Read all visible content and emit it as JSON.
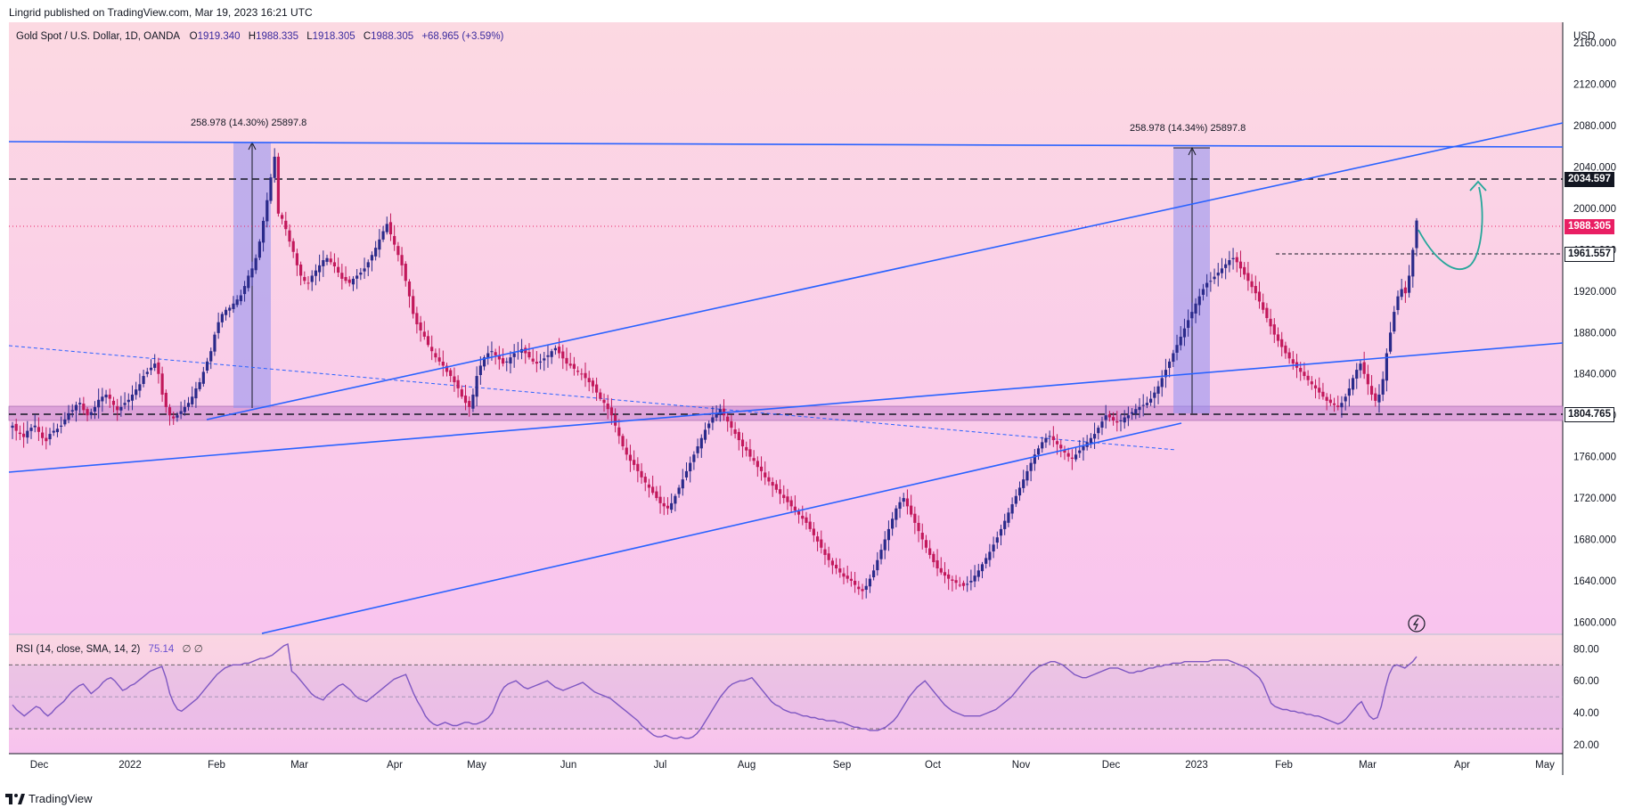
{
  "publisher": "Lingrid published on TradingView.com, Mar 19, 2023 16:21 UTC",
  "header": {
    "symbol": "Gold Spot / U.S. Dollar, 1D, OANDA",
    "o_label": "O",
    "open": "1919.340",
    "h_label": "H",
    "high": "1988.335",
    "l_label": "L",
    "low": "1918.305",
    "c_label": "C",
    "close": "1988.305",
    "change": "+68.965 (+3.59%)"
  },
  "rsi_header": {
    "label": "RSI (14, close, SMA, 14, 2)",
    "value": "75.14",
    "extra": "∅ ∅"
  },
  "footer": {
    "brand": "TradingView"
  },
  "colors": {
    "up": "#2a2a8a",
    "down": "#c2185b",
    "trend": "#2962ff",
    "price_badge": "#e91e63",
    "arrow": "#26a69a",
    "rsi_line": "#7e57c2"
  },
  "chart_data": {
    "type": "candlestick",
    "currency": "USD",
    "y_range": [
      1590,
      2180
    ],
    "y_ticks": [
      "2160.000",
      "2120.000",
      "2080.000",
      "2040.000",
      "2000.000",
      "1960.000",
      "1920.000",
      "1880.000",
      "1840.000",
      "1800.000",
      "1760.000",
      "1720.000",
      "1680.000",
      "1640.000",
      "1600.000"
    ],
    "x_labels": [
      "Dec",
      "2022",
      "Feb",
      "Mar",
      "Apr",
      "May",
      "Jun",
      "Jul",
      "Aug",
      "Sep",
      "Oct",
      "Nov",
      "Dec",
      "2023",
      "Feb",
      "Mar",
      "Apr",
      "May"
    ],
    "price_levels": [
      {
        "value": "2034.597",
        "style": "dashed"
      },
      {
        "value": "1988.305",
        "style": "current"
      },
      {
        "value": "1961.557",
        "style": "dashed"
      },
      {
        "value": "1804.765",
        "style": "dashed"
      }
    ],
    "measurements": [
      {
        "text": "258.978 (14.30%) 25897.8"
      },
      {
        "text": "258.978 (14.34%) 25897.8"
      }
    ],
    "series": {
      "name": "Gold Spot / U.S. Dollar",
      "closes": [
        1790,
        1785,
        1782,
        1779,
        1785,
        1788,
        1790,
        1784,
        1778,
        1775,
        1782,
        1785,
        1787,
        1790,
        1796,
        1802,
        1805,
        1810,
        1812,
        1805,
        1800,
        1803,
        1808,
        1815,
        1818,
        1820,
        1816,
        1810,
        1805,
        1808,
        1812,
        1815,
        1820,
        1825,
        1830,
        1838,
        1842,
        1846,
        1850,
        1840,
        1820,
        1808,
        1800,
        1797,
        1800,
        1804,
        1808,
        1812,
        1818,
        1826,
        1832,
        1842,
        1852,
        1862,
        1878,
        1890,
        1898,
        1902,
        1904,
        1908,
        1912,
        1916,
        1925,
        1935,
        1942,
        1952,
        1968,
        1988,
        2008,
        2030,
        2050,
        1995,
        1990,
        1980,
        1968,
        1958,
        1945,
        1935,
        1930,
        1928,
        1935,
        1940,
        1945,
        1950,
        1952,
        1948,
        1944,
        1938,
        1932,
        1930,
        1928,
        1932,
        1935,
        1938,
        1942,
        1948,
        1955,
        1962,
        1970,
        1978,
        1985,
        1975,
        1965,
        1955,
        1945,
        1930,
        1915,
        1898,
        1888,
        1882,
        1876,
        1868,
        1862,
        1856,
        1852,
        1848,
        1842,
        1838,
        1832,
        1826,
        1818,
        1812,
        1808,
        1820,
        1838,
        1848,
        1856,
        1860,
        1862,
        1858,
        1854,
        1850,
        1852,
        1856,
        1860,
        1862,
        1864,
        1860,
        1856,
        1852,
        1850,
        1852,
        1855,
        1858,
        1862,
        1865,
        1860,
        1855,
        1850,
        1848,
        1845,
        1842,
        1840,
        1836,
        1832,
        1828,
        1822,
        1816,
        1812,
        1806,
        1800,
        1790,
        1780,
        1770,
        1762,
        1756,
        1752,
        1746,
        1740,
        1735,
        1730,
        1725,
        1720,
        1715,
        1712,
        1710,
        1715,
        1722,
        1730,
        1738,
        1746,
        1754,
        1762,
        1770,
        1778,
        1786,
        1792,
        1798,
        1802,
        1806,
        1800,
        1794,
        1788,
        1782,
        1776,
        1770,
        1766,
        1760,
        1756,
        1750,
        1746,
        1740,
        1736,
        1732,
        1728,
        1724,
        1720,
        1716,
        1712,
        1708,
        1704,
        1700,
        1696,
        1690,
        1684,
        1678,
        1672,
        1665,
        1660,
        1655,
        1652,
        1648,
        1644,
        1642,
        1640,
        1636,
        1632,
        1630,
        1635,
        1642,
        1650,
        1660,
        1670,
        1680,
        1690,
        1700,
        1710,
        1716,
        1720,
        1712,
        1704,
        1696,
        1688,
        1680,
        1672,
        1665,
        1658,
        1652,
        1648,
        1645,
        1642,
        1640,
        1638,
        1636,
        1635,
        1637,
        1640,
        1645,
        1650,
        1656,
        1662,
        1668,
        1675,
        1682,
        1690,
        1698,
        1706,
        1714,
        1722,
        1730,
        1738,
        1746,
        1754,
        1762,
        1768,
        1774,
        1778,
        1780,
        1776,
        1772,
        1768,
        1764,
        1760,
        1758,
        1762,
        1766,
        1770,
        1774,
        1778,
        1782,
        1788,
        1794,
        1800,
        1798,
        1795,
        1793,
        1795,
        1798,
        1800,
        1803,
        1806,
        1808,
        1810,
        1812,
        1816,
        1822,
        1828,
        1836,
        1844,
        1852,
        1860,
        1868,
        1876,
        1884,
        1892,
        1900,
        1908,
        1915,
        1922,
        1928,
        1930,
        1934,
        1938,
        1942,
        1946,
        1950,
        1952,
        1948,
        1942,
        1936,
        1930,
        1924,
        1918,
        1910,
        1902,
        1894,
        1886,
        1878,
        1872,
        1866,
        1860,
        1855,
        1850,
        1846,
        1842,
        1838,
        1834,
        1830,
        1826,
        1822,
        1818,
        1814,
        1812,
        1810,
        1808,
        1812,
        1818,
        1826,
        1836,
        1844,
        1850,
        1840,
        1830,
        1820,
        1814,
        1820,
        1835,
        1860,
        1880,
        1900,
        1915,
        1922,
        1918,
        1935,
        1960,
        1988.305
      ]
    },
    "rsi": {
      "name": "RSI (14, close, SMA, 14, 2)",
      "y_range": [
        15,
        88
      ],
      "y_ticks": [
        "80.00",
        "60.00",
        "40.00",
        "20.00"
      ],
      "bands": [
        70,
        50,
        30
      ],
      "last": 75.14,
      "values": [
        45,
        42,
        40,
        38,
        40,
        42,
        44,
        43,
        40,
        38,
        40,
        43,
        45,
        47,
        50,
        53,
        55,
        57,
        58,
        55,
        52,
        54,
        56,
        59,
        61,
        62,
        60,
        57,
        54,
        55,
        57,
        58,
        60,
        62,
        64,
        66,
        67,
        68,
        69,
        62,
        52,
        46,
        42,
        41,
        43,
        45,
        47,
        49,
        52,
        55,
        58,
        61,
        64,
        66,
        68,
        69,
        70,
        70,
        70,
        71,
        71,
        72,
        73,
        74,
        74,
        75,
        76,
        78,
        80,
        82,
        83,
        66,
        64,
        61,
        58,
        55,
        52,
        50,
        49,
        48,
        51,
        53,
        55,
        57,
        58,
        56,
        54,
        51,
        49,
        48,
        47,
        49,
        51,
        53,
        55,
        57,
        59,
        61,
        62,
        63,
        64,
        58,
        52,
        47,
        43,
        38,
        35,
        33,
        32,
        33,
        34,
        33,
        32,
        32,
        33,
        34,
        34,
        33,
        33,
        34,
        35,
        37,
        40,
        46,
        52,
        56,
        58,
        59,
        60,
        58,
        56,
        55,
        56,
        57,
        58,
        59,
        60,
        58,
        56,
        55,
        54,
        55,
        56,
        57,
        58,
        59,
        57,
        55,
        53,
        52,
        51,
        50,
        49,
        47,
        45,
        43,
        41,
        39,
        37,
        35,
        32,
        30,
        28,
        26,
        25,
        25,
        26,
        25,
        24,
        24,
        25,
        24,
        24,
        25,
        27,
        30,
        34,
        38,
        42,
        46,
        50,
        53,
        56,
        58,
        59,
        60,
        60,
        61,
        62,
        59,
        56,
        53,
        50,
        47,
        45,
        44,
        42,
        41,
        40,
        40,
        39,
        38,
        38,
        37,
        37,
        36,
        36,
        35,
        35,
        35,
        34,
        34,
        33,
        32,
        31,
        31,
        30,
        30,
        29,
        29,
        29,
        30,
        31,
        33,
        35,
        38,
        42,
        46,
        50,
        53,
        56,
        58,
        60,
        57,
        54,
        51,
        48,
        45,
        43,
        41,
        40,
        39,
        38,
        38,
        38,
        38,
        38,
        39,
        40,
        41,
        42,
        44,
        46,
        48,
        50,
        53,
        56,
        59,
        62,
        65,
        67,
        69,
        70,
        71,
        72,
        72,
        71,
        70,
        68,
        66,
        64,
        63,
        62,
        62,
        63,
        64,
        65,
        66,
        67,
        68,
        68,
        68,
        67,
        66,
        65,
        65,
        66,
        66,
        67,
        68,
        68,
        69,
        69,
        70,
        70,
        71,
        71,
        71,
        72,
        72,
        72,
        72,
        72,
        72,
        72,
        73,
        73,
        73,
        73,
        73,
        72,
        71,
        70,
        69,
        68,
        66,
        64,
        62,
        58,
        52,
        46,
        44,
        43,
        42,
        42,
        41,
        41,
        40,
        40,
        39,
        39,
        38,
        38,
        37,
        36,
        35,
        34,
        33,
        34,
        36,
        39,
        42,
        45,
        47,
        42,
        38,
        36,
        37,
        44,
        55,
        64,
        69,
        70,
        69,
        68,
        70,
        72,
        75.14
      ]
    }
  }
}
